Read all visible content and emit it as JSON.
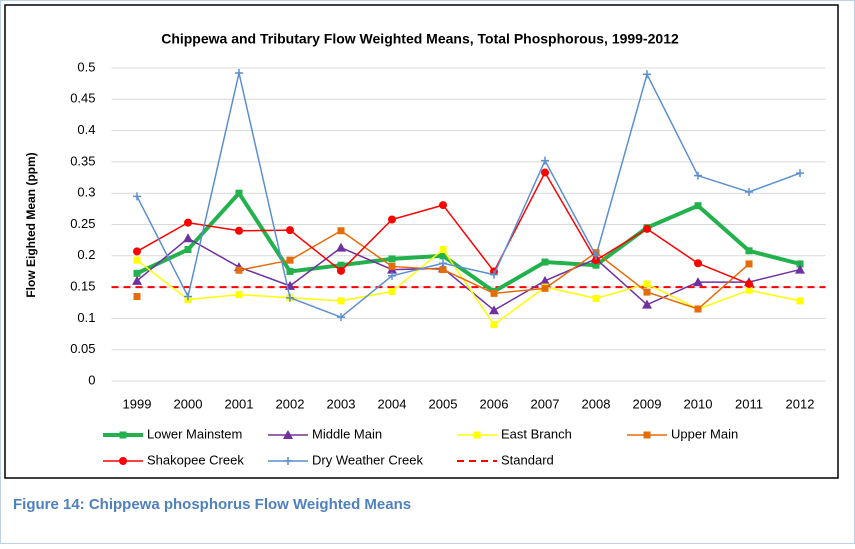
{
  "chart_data": {
    "type": "line",
    "title": "Chippewa and Tributary Flow Weighted Means, Total Phosphorous, 1999-2012",
    "ylabel": "Flow Eighted Mean (ppm)",
    "categories": [
      "1999",
      "2000",
      "2001",
      "2002",
      "2003",
      "2004",
      "2005",
      "2006",
      "2007",
      "2008",
      "2009",
      "2010",
      "2011",
      "2012"
    ],
    "ylim": [
      0,
      0.5
    ],
    "yticks": [
      0,
      0.05,
      0.1,
      0.15,
      0.2,
      0.25,
      0.3,
      0.35,
      0.4,
      0.45,
      0.5
    ],
    "grid": true,
    "legend": "bottom",
    "series": [
      {
        "name": "Lower Mainstem",
        "color": "#22b14c",
        "marker": "square",
        "values": [
          0.172,
          0.21,
          0.3,
          0.175,
          0.185,
          0.195,
          0.2,
          0.143,
          0.19,
          0.185,
          0.245,
          0.28,
          0.208,
          0.187
        ]
      },
      {
        "name": "Middle Main",
        "color": "#7030a0",
        "marker": "triangle",
        "values": [
          0.16,
          0.228,
          0.182,
          0.152,
          0.213,
          0.178,
          0.18,
          0.113,
          0.16,
          0.195,
          0.122,
          0.158,
          0.158,
          0.178
        ]
      },
      {
        "name": "East Branch",
        "color": "#ffff00",
        "marker": "square",
        "values": [
          0.193,
          0.13,
          0.138,
          0.133,
          0.128,
          0.143,
          0.21,
          0.09,
          0.15,
          0.132,
          0.155,
          0.115,
          0.145,
          0.128
        ]
      },
      {
        "name": "Upper Main",
        "color": "#e46c0a",
        "marker": "square",
        "values": [
          0.135,
          null,
          0.177,
          0.193,
          0.24,
          0.183,
          0.178,
          0.14,
          0.148,
          0.205,
          0.142,
          0.115,
          0.187,
          null
        ]
      },
      {
        "name": "Shakopee Creek",
        "color": "#ff0000",
        "marker": "circle",
        "values": [
          0.207,
          0.253,
          0.24,
          0.241,
          0.176,
          0.258,
          0.281,
          0.175,
          0.333,
          0.193,
          0.243,
          0.188,
          0.155,
          null
        ]
      },
      {
        "name": "Dry Weather Creek",
        "color": "#5b8fd0",
        "marker": "plus",
        "values": [
          0.295,
          0.135,
          0.492,
          0.133,
          0.102,
          0.168,
          0.188,
          0.17,
          0.352,
          0.2,
          0.49,
          0.328,
          0.302,
          0.332
        ]
      }
    ],
    "standard": {
      "name": "Standard",
      "value": 0.15,
      "color": "#ff0000"
    }
  },
  "caption": "Figure 14: Chippewa phosphorus Flow Weighted Means"
}
